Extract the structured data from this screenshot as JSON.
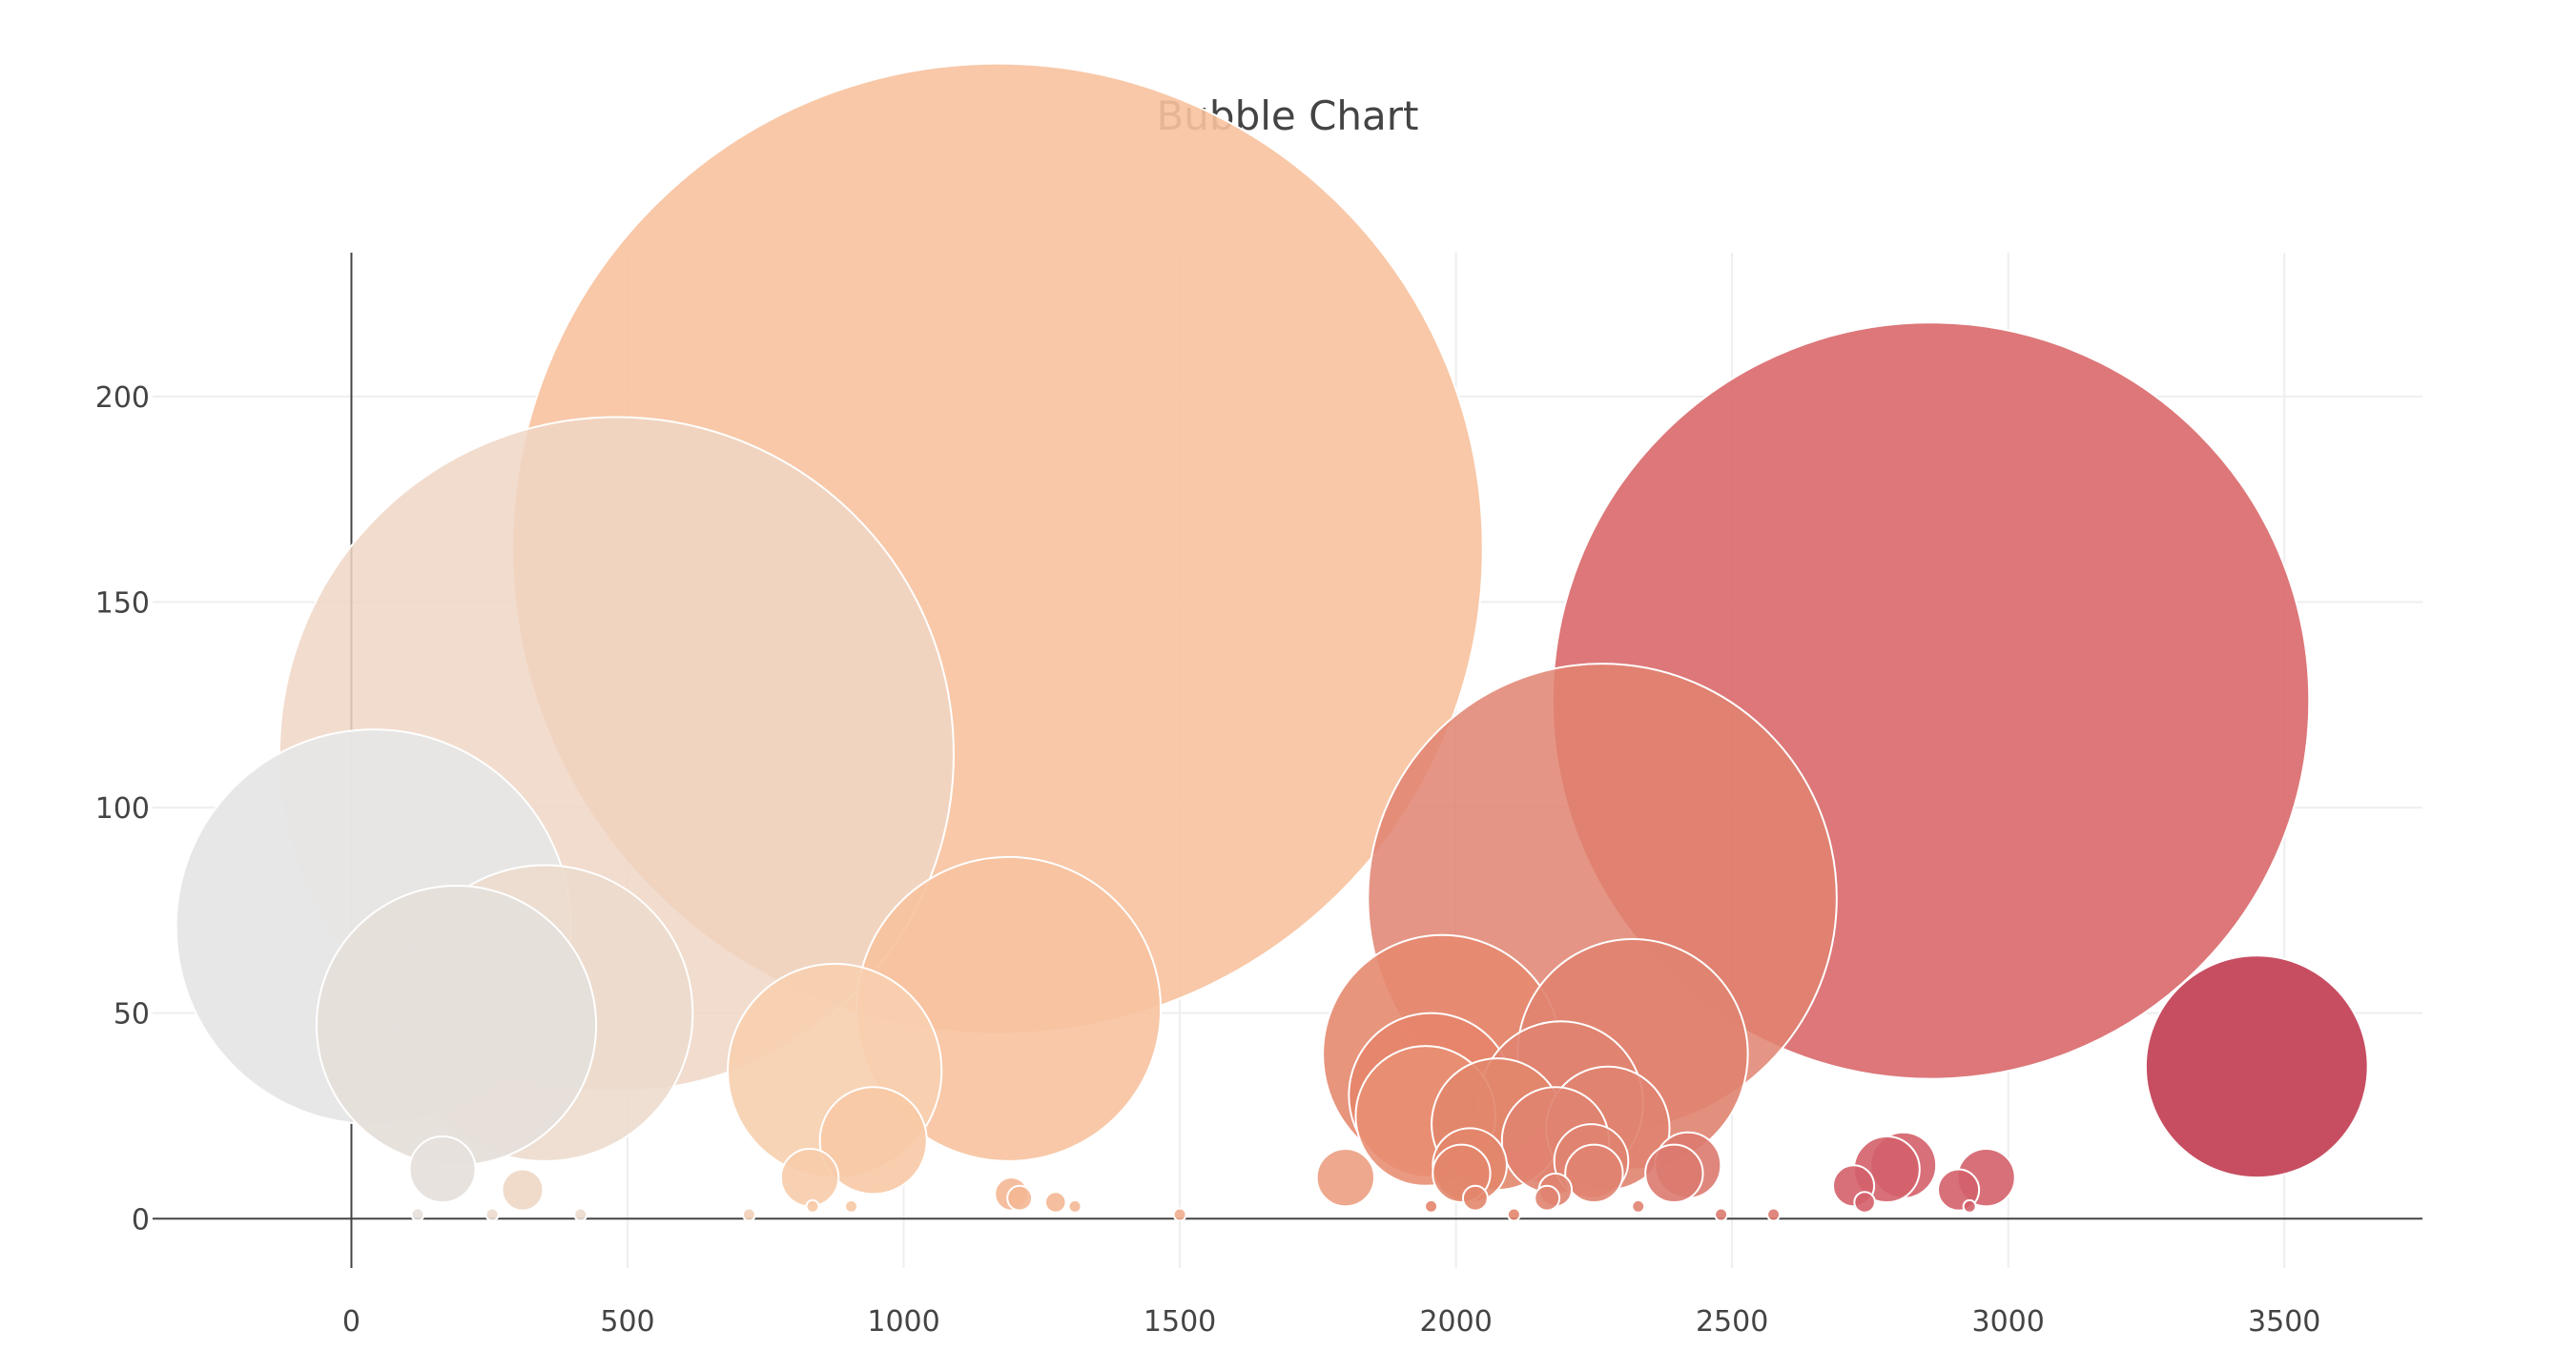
{
  "chart_data": {
    "type": "scatter",
    "title": "Bubble Chart",
    "xlabel": "",
    "ylabel": "",
    "xlim": [
      -360,
      3750
    ],
    "ylim": [
      -12,
      235
    ],
    "x_ticks": [
      0,
      500,
      1000,
      1500,
      2000,
      2500,
      3000,
      3500
    ],
    "y_ticks": [
      0,
      50,
      100,
      150,
      200
    ],
    "grid": true,
    "legend": "none",
    "colorscale": [
      "#e6e6e6",
      "#f2dccb",
      "#f7c59f",
      "#e8927c",
      "#d96c6c",
      "#c0394f"
    ],
    "series": [
      {
        "points": [
          {
            "x": 40,
            "y": 71,
            "size": 48,
            "color": "#e6e6e6",
            "opacity": 0.95
          },
          {
            "x": 190,
            "y": 47,
            "size": 34,
            "color": "#e6dfda",
            "opacity": 0.95
          },
          {
            "x": 350,
            "y": 50,
            "size": 36,
            "color": "#ecdccd",
            "opacity": 0.9
          },
          {
            "x": 480,
            "y": 113,
            "size": 82,
            "color": "#f0d6c4",
            "opacity": 0.85
          },
          {
            "x": 165,
            "y": 12,
            "size": 8,
            "color": "#e6e0db",
            "opacity": 0.95
          },
          {
            "x": 310,
            "y": 7,
            "size": 5,
            "color": "#efd9c8",
            "opacity": 0.95
          },
          {
            "x": 875,
            "y": 36,
            "size": 26,
            "color": "#f7cfaf",
            "opacity": 0.9
          },
          {
            "x": 945,
            "y": 19,
            "size": 13,
            "color": "#f7c9a5",
            "opacity": 0.9
          },
          {
            "x": 830,
            "y": 10,
            "size": 7,
            "color": "#f7ccab",
            "opacity": 0.9
          },
          {
            "x": 1170,
            "y": 163,
            "size": 118,
            "color": "#f7c29f",
            "opacity": 0.9
          },
          {
            "x": 1190,
            "y": 51,
            "size": 37,
            "color": "#f7c29f",
            "opacity": 0.9
          },
          {
            "x": 1195,
            "y": 6,
            "size": 4,
            "color": "#f4b794",
            "opacity": 0.9
          },
          {
            "x": 1210,
            "y": 5,
            "size": 3,
            "color": "#f4b794",
            "opacity": 0.9
          },
          {
            "x": 1275,
            "y": 4,
            "size": 2.5,
            "color": "#f4b794",
            "opacity": 0.9
          },
          {
            "x": 1800,
            "y": 10,
            "size": 7,
            "color": "#ec9f82",
            "opacity": 0.9
          },
          {
            "x": 1975,
            "y": 40,
            "size": 29,
            "color": "#e58a70",
            "opacity": 0.9
          },
          {
            "x": 1955,
            "y": 30,
            "size": 20,
            "color": "#e5846a",
            "opacity": 0.9
          },
          {
            "x": 1945,
            "y": 25,
            "size": 17,
            "color": "#e88f73",
            "opacity": 0.9
          },
          {
            "x": 2025,
            "y": 13,
            "size": 9,
            "color": "#e2866c",
            "opacity": 0.9
          },
          {
            "x": 2010,
            "y": 11,
            "size": 7,
            "color": "#e2866c",
            "opacity": 0.9
          },
          {
            "x": 2035,
            "y": 5,
            "size": 3,
            "color": "#e2866c",
            "opacity": 0.9
          },
          {
            "x": 2075,
            "y": 23,
            "size": 16,
            "color": "#e2866c",
            "opacity": 0.9
          },
          {
            "x": 2190,
            "y": 28,
            "size": 20,
            "color": "#e08370",
            "opacity": 0.9
          },
          {
            "x": 2180,
            "y": 19,
            "size": 13,
            "color": "#e08370",
            "opacity": 0.9
          },
          {
            "x": 2180,
            "y": 7,
            "size": 4,
            "color": "#e08370",
            "opacity": 0.9
          },
          {
            "x": 2165,
            "y": 5,
            "size": 3,
            "color": "#e08370",
            "opacity": 0.9
          },
          {
            "x": 2265,
            "y": 78,
            "size": 57,
            "color": "#e08370",
            "opacity": 0.85
          },
          {
            "x": 2320,
            "y": 40,
            "size": 28,
            "color": "#e08370",
            "opacity": 0.9
          },
          {
            "x": 2275,
            "y": 22,
            "size": 15,
            "color": "#e08370",
            "opacity": 0.9
          },
          {
            "x": 2245,
            "y": 14,
            "size": 9,
            "color": "#e08370",
            "opacity": 0.9
          },
          {
            "x": 2250,
            "y": 11,
            "size": 7,
            "color": "#e08370",
            "opacity": 0.9
          },
          {
            "x": 2420,
            "y": 13,
            "size": 8,
            "color": "#dc7a6f",
            "opacity": 0.9
          },
          {
            "x": 2395,
            "y": 11,
            "size": 7,
            "color": "#dc7a6f",
            "opacity": 0.9
          },
          {
            "x": 2860,
            "y": 126,
            "size": 92,
            "color": "#d9686a",
            "opacity": 0.9
          },
          {
            "x": 2810,
            "y": 13,
            "size": 8,
            "color": "#d4606a",
            "opacity": 0.9
          },
          {
            "x": 2780,
            "y": 12,
            "size": 8,
            "color": "#d4606a",
            "opacity": 0.9
          },
          {
            "x": 2720,
            "y": 8,
            "size": 5,
            "color": "#d4606a",
            "opacity": 0.9
          },
          {
            "x": 2740,
            "y": 4,
            "size": 2.5,
            "color": "#d4606a",
            "opacity": 0.9
          },
          {
            "x": 2910,
            "y": 7,
            "size": 5,
            "color": "#d4606a",
            "opacity": 0.9
          },
          {
            "x": 2960,
            "y": 10,
            "size": 7,
            "color": "#d4606a",
            "opacity": 0.9
          },
          {
            "x": 3450,
            "y": 37,
            "size": 27,
            "color": "#c44558",
            "opacity": 0.95
          },
          {
            "x": 120,
            "y": 1,
            "size": 1.5,
            "color": "#e6e0db",
            "opacity": 0.9
          },
          {
            "x": 255,
            "y": 1,
            "size": 1.5,
            "color": "#ecdccd",
            "opacity": 0.9
          },
          {
            "x": 415,
            "y": 1,
            "size": 1.5,
            "color": "#ecdccd",
            "opacity": 0.9
          },
          {
            "x": 720,
            "y": 1,
            "size": 1.5,
            "color": "#f2d0b8",
            "opacity": 0.9
          },
          {
            "x": 835,
            "y": 3,
            "size": 1.5,
            "color": "#f7c9a5",
            "opacity": 0.9
          },
          {
            "x": 905,
            "y": 3,
            "size": 1.5,
            "color": "#f7c9a5",
            "opacity": 0.9
          },
          {
            "x": 1310,
            "y": 3,
            "size": 1.5,
            "color": "#f4b794",
            "opacity": 0.9
          },
          {
            "x": 1500,
            "y": 1,
            "size": 1.5,
            "color": "#efae8f",
            "opacity": 0.9
          },
          {
            "x": 1955,
            "y": 3,
            "size": 1.5,
            "color": "#e5846a",
            "opacity": 0.9
          },
          {
            "x": 2105,
            "y": 1,
            "size": 1.5,
            "color": "#e2866c",
            "opacity": 0.9
          },
          {
            "x": 2330,
            "y": 3,
            "size": 1.5,
            "color": "#e08370",
            "opacity": 0.9
          },
          {
            "x": 2480,
            "y": 1,
            "size": 1.5,
            "color": "#dc7a6f",
            "opacity": 0.9
          },
          {
            "x": 2575,
            "y": 1,
            "size": 1.5,
            "color": "#dc7a6f",
            "opacity": 0.9
          },
          {
            "x": 2930,
            "y": 3,
            "size": 1.5,
            "color": "#d4606a",
            "opacity": 0.9
          }
        ]
      }
    ]
  }
}
